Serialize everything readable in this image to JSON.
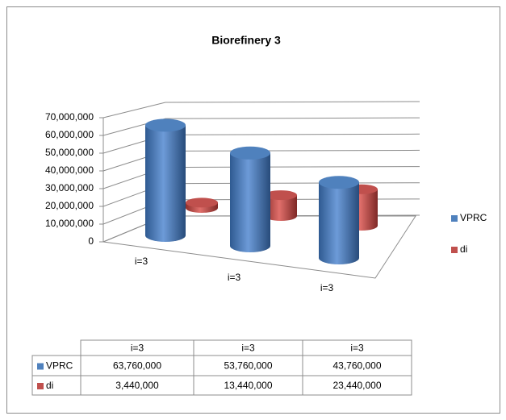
{
  "chart_data": {
    "type": "bar3d",
    "title": "Biorefinery 3",
    "categories": [
      "i=3",
      "i=3",
      "i=3"
    ],
    "series": [
      {
        "name": "VPRC",
        "color": "#4f81bd",
        "values": [
          63760000,
          53760000,
          43760000
        ],
        "value_labels": [
          "63,760,000",
          "53,760,000",
          "43,760,000"
        ]
      },
      {
        "name": "di",
        "color": "#c0504d",
        "values": [
          3440000,
          13440000,
          23440000
        ],
        "value_labels": [
          "3,440,000",
          "13,440,000",
          "23,440,000"
        ]
      }
    ],
    "ylim": [
      0,
      70000000
    ],
    "yticks": [
      0,
      {
        "value": 10000000,
        "label": "10,000,000"
      },
      {
        "value": 20000000,
        "label": "20,000,000"
      },
      {
        "value": 30000000,
        "label": "30,000,000"
      },
      {
        "value": 40000000,
        "label": "40,000,000"
      },
      {
        "value": 50000000,
        "label": "50,000,000"
      },
      {
        "value": 60000000,
        "label": "60,000,000"
      },
      {
        "value": 70000000,
        "label": "70,000,000"
      }
    ],
    "grid": true,
    "legend": "right",
    "data_table": true
  }
}
